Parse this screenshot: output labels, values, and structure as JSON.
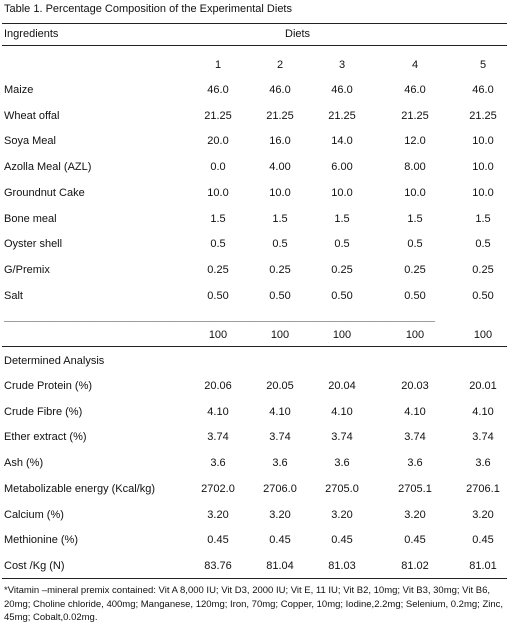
{
  "caption": "Table 1. Percentage Composition of the Experimental Diets",
  "header": {
    "ingredients": "Ingredients",
    "diets": "Diets"
  },
  "diet_numbers": [
    "1",
    "2",
    "3",
    "4",
    "5"
  ],
  "ingredients": [
    {
      "name": "Maize",
      "values": [
        "46.0",
        "46.0",
        "46.0",
        "46.0",
        "46.0"
      ]
    },
    {
      "name": "Wheat offal",
      "values": [
        "21.25",
        "21.25",
        "21.25",
        "21.25",
        "21.25"
      ]
    },
    {
      "name": "Soya Meal",
      "values": [
        "20.0",
        "16.0",
        "14.0",
        "12.0",
        "10.0"
      ]
    },
    {
      "name": "Azolla Meal (AZL)",
      "values": [
        "0.0",
        "4.00",
        "6.00",
        "8.00",
        "10.0"
      ]
    },
    {
      "name": "Groundnut Cake",
      "values": [
        "10.0",
        "10.0",
        "10.0",
        "10.0",
        "10.0"
      ]
    },
    {
      "name": "Bone meal",
      "values": [
        "1.5",
        "1.5",
        "1.5",
        "1.5",
        "1.5"
      ]
    },
    {
      "name": "Oyster shell",
      "values": [
        "0.5",
        "0.5",
        "0.5",
        "0.5",
        "0.5"
      ]
    },
    {
      "name": "G/Premix",
      "values": [
        "0.25",
        "0.25",
        "0.25",
        "0.25",
        "0.25"
      ]
    },
    {
      "name": "Salt",
      "values": [
        "0.50",
        "0.50",
        "0.50",
        "0.50",
        "0.50"
      ]
    }
  ],
  "separator": "______________________________________________________________________________________",
  "totals": [
    "100",
    "100",
    "100",
    "100",
    "100"
  ],
  "analysis_title": "Determined Analysis",
  "analysis": [
    {
      "name": "Crude Protein (%)",
      "values": [
        "20.06",
        "20.05",
        "20.04",
        "20.03",
        "20.01"
      ]
    },
    {
      "name": "Crude Fibre (%)",
      "values": [
        "4.10",
        "4.10",
        "4.10",
        "4.10",
        "4.10"
      ]
    },
    {
      "name": "Ether extract (%)",
      "values": [
        "3.74",
        "3.74",
        "3.74",
        "3.74",
        "3.74"
      ]
    },
    {
      "name": "Ash (%)",
      "values": [
        "3.6",
        "3.6",
        "3.6",
        "3.6",
        "3.6"
      ]
    },
    {
      "name": "Metabolizable energy (Kcal/kg)",
      "values": [
        "2702.0",
        "2706.0",
        "2705.0",
        "2705.1",
        "2706.1"
      ]
    },
    {
      "name": "Calcium (%)",
      "values": [
        "3.20",
        "3.20",
        "3.20",
        "3.20",
        "3.20"
      ]
    },
    {
      "name": "Methionine (%)",
      "values": [
        "0.45",
        "0.45",
        "0.45",
        "0.45",
        "0.45"
      ]
    },
    {
      "name": "Cost /Kg (N)",
      "values": [
        "83.76",
        "81.04",
        "81.03",
        "81.02",
        "81.01"
      ]
    }
  ],
  "footnote": "*Vitamin –mineral premix contained: Vit A 8,000 IU; Vit D3, 2000 IU; Vit E, 11 IU; Vit B2, 10mg; Vit B3, 30mg; Vit B6, 20mg; Choline chloride, 400mg; Manganese, 120mg; Iron, 70mg; Copper, 10mg; Iodine,2.2mg; Selenium, 0.2mg; Zinc, 45mg; Cobalt,0.02mg."
}
